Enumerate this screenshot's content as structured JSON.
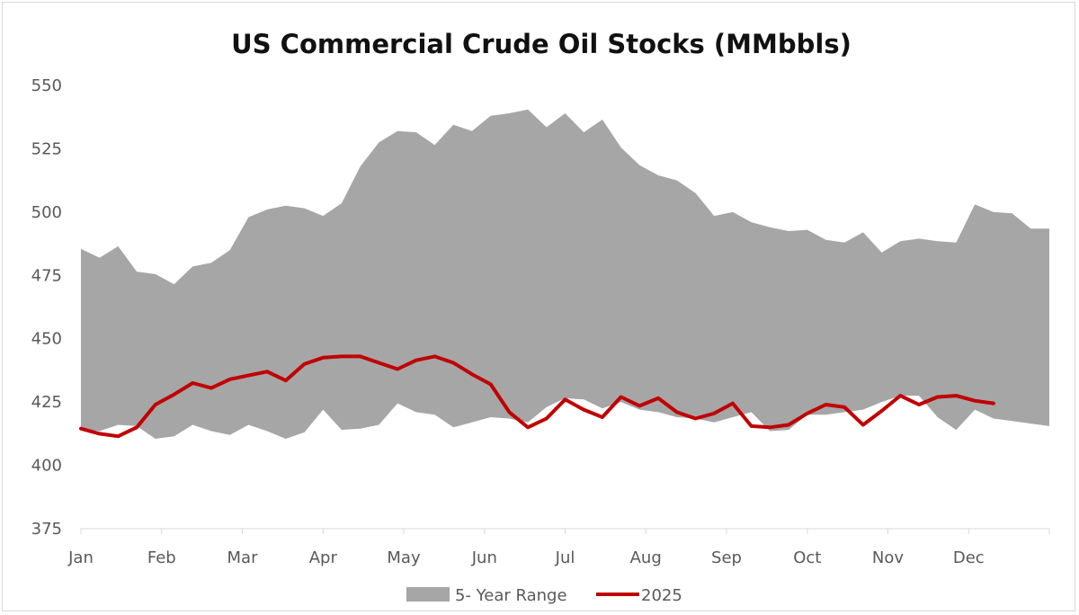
{
  "chart_data": {
    "type": "area",
    "title": "US Commercial Crude Oil Stocks (MMbbls)",
    "xlabel": "",
    "ylabel": "",
    "ylim": [
      375,
      550
    ],
    "yticks": [
      375,
      400,
      425,
      450,
      475,
      500,
      525,
      550
    ],
    "month_labels": [
      "Jan",
      "Feb",
      "Mar",
      "Apr",
      "May",
      "Jun",
      "Jul",
      "Aug",
      "Sep",
      "Oct",
      "Nov",
      "Dec"
    ],
    "x_range_weeks": [
      0,
      52
    ],
    "grid": false,
    "legend_position": "bottom",
    "colors": {
      "range": "#a6a6a6",
      "line": "#c00000",
      "axis": "#d9d9d9"
    },
    "series": [
      {
        "name": "5- Year Range",
        "kind": "band",
        "x_week": [
          0,
          1,
          2,
          3,
          4,
          5,
          6,
          7,
          8,
          9,
          10,
          11,
          12,
          13,
          14,
          15,
          16,
          17,
          18,
          19,
          20,
          21,
          22,
          23,
          24,
          25,
          26,
          27,
          28,
          29,
          30,
          31,
          32,
          33,
          34,
          35,
          36,
          37,
          38,
          39,
          40,
          41,
          42,
          43,
          44,
          45,
          46,
          47,
          48,
          49,
          50,
          51,
          52
        ],
        "upper": [
          485.5,
          482,
          486.5,
          476.5,
          475.5,
          471.5,
          478.5,
          480,
          485,
          498,
          501,
          502.5,
          501.5,
          498.5,
          503.5,
          518,
          527.5,
          532,
          531.5,
          526.5,
          534.5,
          532,
          538,
          539,
          540.5,
          533.5,
          539,
          531.5,
          536.5,
          525.5,
          518.5,
          514.5,
          512.5,
          507.5,
          498.5,
          500,
          496,
          494,
          492.5,
          493,
          489,
          488,
          492,
          484,
          488.5,
          489.5,
          488.5,
          488,
          503,
          500,
          499.5,
          493.5,
          493.5
        ],
        "lower": [
          414.5,
          413.5,
          416,
          415.5,
          410.5,
          411.5,
          416,
          413.5,
          412,
          416,
          413.5,
          410.5,
          413,
          422,
          414,
          414.5,
          416,
          424.5,
          421,
          420,
          415,
          417,
          419,
          418.5,
          417,
          423,
          426.5,
          426,
          422.5,
          425,
          422,
          421,
          419,
          418.5,
          417,
          419,
          421,
          413.5,
          414,
          420,
          420,
          421,
          422,
          425,
          427.5,
          427.5,
          419,
          414,
          422,
          418.5,
          417.5,
          416.5,
          415.5
        ]
      },
      {
        "name": "2025",
        "kind": "line",
        "x_week": [
          0,
          1,
          2,
          3,
          4,
          5,
          6,
          7,
          8,
          9,
          10,
          11,
          12,
          13,
          14,
          15,
          16,
          17,
          18,
          19,
          20,
          21,
          22,
          23,
          24,
          25,
          26,
          27,
          28,
          29,
          30,
          31,
          32,
          33,
          34,
          35,
          36,
          37,
          38,
          39,
          40,
          41,
          42,
          43,
          44,
          45,
          46,
          47,
          48,
          49
        ],
        "values": [
          414.5,
          412.5,
          411.5,
          415,
          424,
          428,
          432.5,
          430.5,
          434,
          435.5,
          437,
          433.5,
          440,
          442.5,
          443,
          443,
          440.5,
          438,
          441.5,
          443,
          440.5,
          436,
          432,
          421,
          415,
          418.5,
          426,
          422,
          419,
          427,
          423.5,
          426.5,
          421,
          418.5,
          420.5,
          424.5,
          415.5,
          415,
          416,
          420.5,
          424,
          423,
          416,
          421.5,
          427.5,
          424,
          427,
          427.5,
          425.5,
          424.5
        ]
      }
    ]
  }
}
